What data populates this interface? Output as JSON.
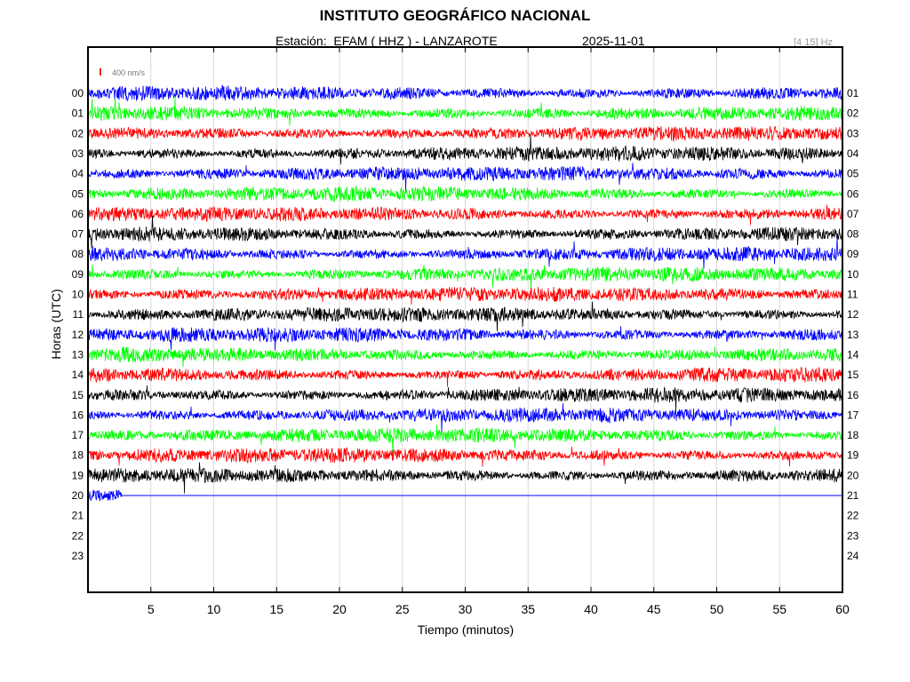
{
  "header": {
    "title": "INSTITUTO GEOGRÁFICO NACIONAL",
    "station": "Estación:  EFAM ( HHZ ) - LANZAROTE",
    "date": "2025-11-01",
    "band": "[4 15] Hz"
  },
  "colors": {
    "trace_cycle": [
      "#0000ff",
      "#00ff00",
      "#ff0000",
      "#000000"
    ],
    "grid": "#d9d9d9",
    "scale_marker": "#ff0000",
    "band_text": "#999999"
  },
  "chart_data": {
    "type": "line",
    "subtype": "helicorder",
    "title": "INSTITUTO GEOGRÁFICO NACIONAL",
    "xlabel": "Tiempo (minutos)",
    "ylabel": "Horas (UTC)",
    "xlim": [
      0,
      60
    ],
    "x_ticks": [
      5,
      10,
      15,
      20,
      25,
      30,
      35,
      40,
      45,
      50,
      55,
      60
    ],
    "x_tick_labels": [
      "5",
      "10",
      "15",
      "20",
      "25",
      "30",
      "35",
      "40",
      "45",
      "50",
      "55",
      "60"
    ],
    "grid": "vertical",
    "scale_label": "400 nm/s",
    "left_hour_labels": [
      "00",
      "01",
      "02",
      "03",
      "04",
      "05",
      "06",
      "07",
      "08",
      "09",
      "10",
      "11",
      "12",
      "13",
      "14",
      "15",
      "16",
      "17",
      "18",
      "19",
      "20",
      "21",
      "22",
      "23"
    ],
    "right_hour_labels": [
      "01",
      "02",
      "03",
      "04",
      "05",
      "06",
      "07",
      "08",
      "09",
      "10",
      "11",
      "12",
      "13",
      "14",
      "15",
      "16",
      "17",
      "18",
      "19",
      "20",
      "21",
      "22",
      "23",
      "24"
    ],
    "series": [
      {
        "hour": "00",
        "color": "#0000ff",
        "end_minute": 60
      },
      {
        "hour": "01",
        "color": "#00ff00",
        "end_minute": 60
      },
      {
        "hour": "02",
        "color": "#ff0000",
        "end_minute": 60
      },
      {
        "hour": "03",
        "color": "#000000",
        "end_minute": 60
      },
      {
        "hour": "04",
        "color": "#0000ff",
        "end_minute": 60
      },
      {
        "hour": "05",
        "color": "#00ff00",
        "end_minute": 60
      },
      {
        "hour": "06",
        "color": "#ff0000",
        "end_minute": 60
      },
      {
        "hour": "07",
        "color": "#000000",
        "end_minute": 60
      },
      {
        "hour": "08",
        "color": "#0000ff",
        "end_minute": 60
      },
      {
        "hour": "09",
        "color": "#00ff00",
        "end_minute": 60
      },
      {
        "hour": "10",
        "color": "#ff0000",
        "end_minute": 60
      },
      {
        "hour": "11",
        "color": "#000000",
        "end_minute": 60
      },
      {
        "hour": "12",
        "color": "#0000ff",
        "end_minute": 60
      },
      {
        "hour": "13",
        "color": "#00ff00",
        "end_minute": 60
      },
      {
        "hour": "14",
        "color": "#ff0000",
        "end_minute": 60
      },
      {
        "hour": "15",
        "color": "#000000",
        "end_minute": 60
      },
      {
        "hour": "16",
        "color": "#0000ff",
        "end_minute": 60
      },
      {
        "hour": "17",
        "color": "#00ff00",
        "end_minute": 60
      },
      {
        "hour": "18",
        "color": "#ff0000",
        "end_minute": 60
      },
      {
        "hour": "19",
        "color": "#000000",
        "end_minute": 60
      },
      {
        "hour": "20",
        "color": "#0000ff",
        "end_minute": 2.7,
        "flat_line_to": 60
      }
    ]
  }
}
